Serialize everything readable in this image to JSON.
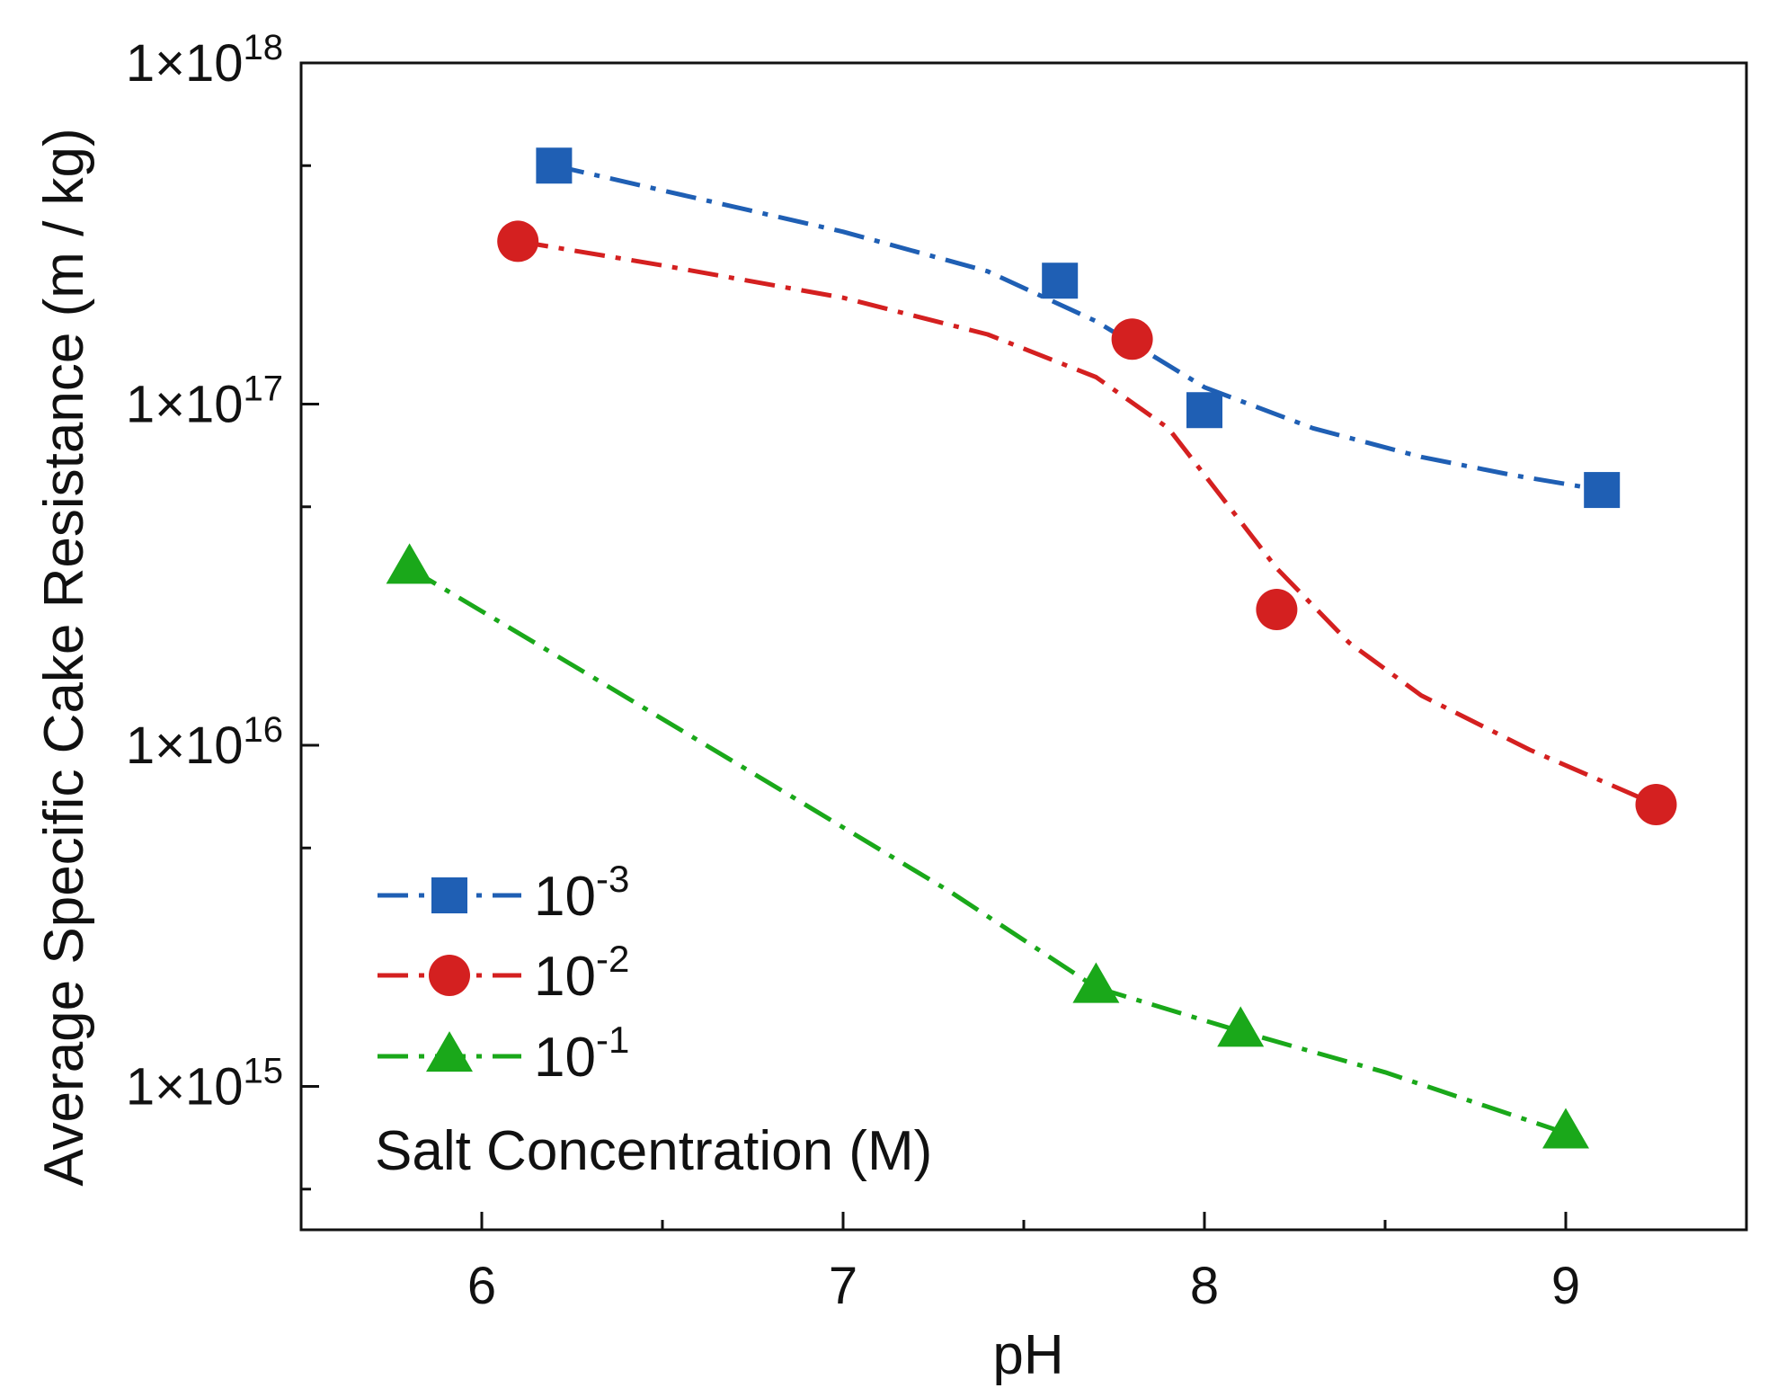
{
  "chart_data": {
    "type": "line",
    "title": "",
    "xlabel": "pH",
    "ylabel": "Average Specific Cake Resistance (m / kg)",
    "y_scale": "log",
    "xlim": [
      5.5,
      9.5
    ],
    "ylim": [
      380000000000000.0,
      1e+18
    ],
    "x_ticks": [
      6,
      7,
      8,
      9
    ],
    "x_tick_labels": [
      "6",
      "7",
      "8",
      "9"
    ],
    "y_ticks": [
      {
        "value": 1000000000000000.0,
        "mantissa": "1×10",
        "exp": "15"
      },
      {
        "value": 1e+16,
        "mantissa": "1×10",
        "exp": "16"
      },
      {
        "value": 1e+17,
        "mantissa": "1×10",
        "exp": "17"
      },
      {
        "value": 1e+18,
        "mantissa": "1×10",
        "exp": "18"
      }
    ],
    "legend_title": "Salt Concentration (M)",
    "legend_position": "bottom-left",
    "series": [
      {
        "name": "10^-3",
        "label_base": "10",
        "label_exp": "-3",
        "color": "#1f5fb4",
        "marker": "square",
        "points": [
          [
            6.2,
            5e+17
          ],
          [
            7.6,
            2.3e+17
          ],
          [
            8.0,
            9.6e+16
          ],
          [
            9.1,
            5.6e+16
          ]
        ],
        "curve": [
          [
            6.2,
            5e+17
          ],
          [
            6.6,
            4e+17
          ],
          [
            7.0,
            3.2e+17
          ],
          [
            7.4,
            2.45e+17
          ],
          [
            7.7,
            1.75e+17
          ],
          [
            8.0,
            1.12e+17
          ],
          [
            8.3,
            8.5e+16
          ],
          [
            8.6,
            7e+16
          ],
          [
            8.85,
            6.2e+16
          ],
          [
            9.1,
            5.6e+16
          ]
        ]
      },
      {
        "name": "10^-2",
        "label_base": "10",
        "label_exp": "-2",
        "color": "#d42020",
        "marker": "circle",
        "points": [
          [
            6.1,
            3e+17
          ],
          [
            7.8,
            1.55e+17
          ],
          [
            8.2,
            2.5e+16
          ],
          [
            9.25,
            6700000000000000.0
          ]
        ],
        "curve": [
          [
            6.1,
            3e+17
          ],
          [
            6.5,
            2.55e+17
          ],
          [
            7.0,
            2.05e+17
          ],
          [
            7.4,
            1.6e+17
          ],
          [
            7.7,
            1.2e+17
          ],
          [
            7.9,
            8.5e+16
          ],
          [
            8.05,
            5.3e+16
          ],
          [
            8.2,
            3.3e+16
          ],
          [
            8.4,
            2e+16
          ],
          [
            8.6,
            1.4e+16
          ],
          [
            8.9,
            9700000000000000.0
          ],
          [
            9.25,
            6700000000000000.0
          ]
        ]
      },
      {
        "name": "10^-1",
        "label_base": "10",
        "label_exp": "-1",
        "color": "#1aa81a",
        "marker": "triangle",
        "points": [
          [
            5.8,
            3.3e+16
          ],
          [
            7.7,
            1950000000000000.0
          ],
          [
            8.1,
            1450000000000000.0
          ],
          [
            9.0,
            730000000000000.0
          ]
        ],
        "curve": [
          [
            5.8,
            3.3e+16
          ],
          [
            6.3,
            1.6e+16
          ],
          [
            6.8,
            7700000000000000.0
          ],
          [
            7.3,
            3700000000000000.0
          ],
          [
            7.7,
            1950000000000000.0
          ],
          [
            8.1,
            1450000000000000.0
          ],
          [
            8.5,
            1100000000000000.0
          ],
          [
            9.0,
            730000000000000.0
          ]
        ]
      }
    ]
  }
}
